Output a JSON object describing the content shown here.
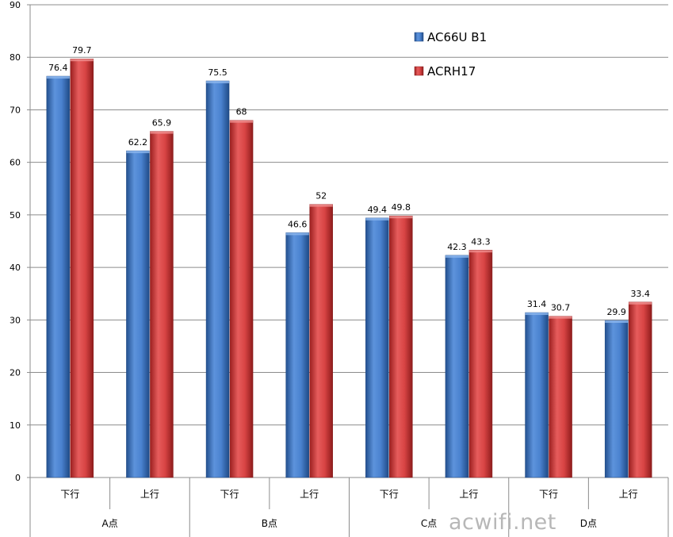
{
  "chart_data": {
    "type": "bar",
    "categories": [
      "下行",
      "上行",
      "下行",
      "上行",
      "下行",
      "上行",
      "下行",
      "上行"
    ],
    "groups": [
      "A点",
      "B点",
      "C点",
      "D点"
    ],
    "series": [
      {
        "name": "AC66U B1",
        "color": "#3f77c8",
        "values": [
          76.4,
          62.2,
          75.5,
          46.6,
          49.4,
          42.3,
          31.4,
          29.9
        ]
      },
      {
        "name": "ACRH17",
        "color": "#d93a3a",
        "values": [
          79.7,
          65.9,
          68,
          52,
          49.8,
          43.3,
          30.7,
          33.4
        ]
      }
    ],
    "ylim": [
      0,
      90
    ],
    "yticks": [
      0,
      10,
      20,
      30,
      40,
      50,
      60,
      70,
      80,
      90
    ],
    "grid": true,
    "legend_position": "top-right",
    "title": "",
    "xlabel": "",
    "ylabel": ""
  },
  "watermark": "acwifi.net"
}
